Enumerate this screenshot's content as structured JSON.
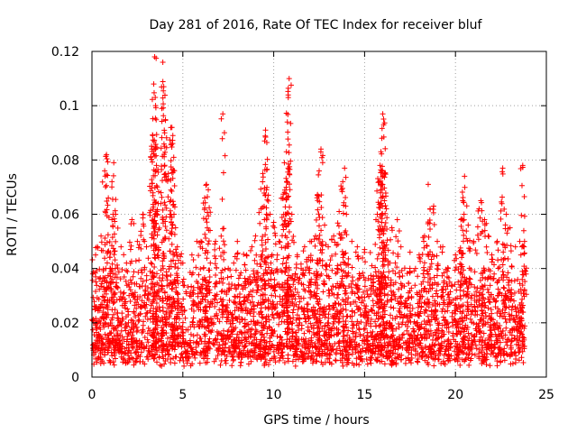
{
  "chart_data": {
    "type": "scatter",
    "title": "Day 281 of 2016, Rate Of TEC Index for receiver bluf",
    "xlabel": "GPS time / hours",
    "ylabel": "ROTI / TECUs",
    "xlim": [
      0,
      25
    ],
    "ylim": [
      0,
      0.12
    ],
    "xticks": [
      0,
      5,
      10,
      15,
      20,
      25
    ],
    "yticks": [
      0,
      0.02,
      0.04,
      0.06,
      0.08,
      0.1,
      0.12
    ],
    "xtick_labels": [
      "0",
      "5",
      "10",
      "15",
      "20",
      "25"
    ],
    "ytick_labels": [
      "0",
      "0.02",
      "0.04",
      "0.06",
      "0.08",
      "0.1",
      "0.12"
    ],
    "grid": true,
    "marker": "plus",
    "color": "#ff0000",
    "series": [
      {
        "name": "ROTI",
        "points": [
          [
            0.1,
            0.012
          ],
          [
            0.2,
            0.045
          ],
          [
            0.3,
            0.048
          ],
          [
            0.5,
            0.052
          ],
          [
            0.7,
            0.076
          ],
          [
            0.8,
            0.082
          ],
          [
            0.9,
            0.066
          ],
          [
            1.1,
            0.072
          ],
          [
            1.2,
            0.079
          ],
          [
            1.3,
            0.06
          ],
          [
            1.6,
            0.048
          ],
          [
            1.9,
            0.042
          ],
          [
            2.2,
            0.058
          ],
          [
            2.5,
            0.05
          ],
          [
            2.8,
            0.06
          ],
          [
            3.0,
            0.048
          ],
          [
            3.3,
            0.084
          ],
          [
            3.35,
            0.089
          ],
          [
            3.4,
            0.108
          ],
          [
            3.45,
            0.118
          ],
          [
            3.5,
            0.1
          ],
          [
            3.55,
            0.078
          ],
          [
            3.6,
            0.07
          ],
          [
            3.9,
            0.116
          ],
          [
            3.95,
            0.107
          ],
          [
            4.0,
            0.09
          ],
          [
            4.2,
            0.075
          ],
          [
            4.3,
            0.06
          ],
          [
            4.4,
            0.092
          ],
          [
            4.45,
            0.089
          ],
          [
            4.5,
            0.081
          ],
          [
            4.6,
            0.055
          ],
          [
            4.7,
            0.048
          ],
          [
            5.0,
            0.042
          ],
          [
            5.5,
            0.045
          ],
          [
            6.0,
            0.05
          ],
          [
            6.2,
            0.066
          ],
          [
            6.3,
            0.071
          ],
          [
            6.4,
            0.069
          ],
          [
            6.5,
            0.054
          ],
          [
            6.8,
            0.05
          ],
          [
            7.2,
            0.097
          ],
          [
            7.5,
            0.04
          ],
          [
            7.8,
            0.042
          ],
          [
            8.0,
            0.05
          ],
          [
            8.5,
            0.045
          ],
          [
            8.8,
            0.048
          ],
          [
            9.0,
            0.052
          ],
          [
            9.3,
            0.062
          ],
          [
            9.4,
            0.075
          ],
          [
            9.5,
            0.087
          ],
          [
            9.55,
            0.091
          ],
          [
            9.6,
            0.069
          ],
          [
            9.8,
            0.06
          ],
          [
            10.0,
            0.057
          ],
          [
            10.3,
            0.05
          ],
          [
            10.5,
            0.066
          ],
          [
            10.6,
            0.068
          ],
          [
            10.7,
            0.083
          ],
          [
            10.75,
            0.094
          ],
          [
            10.8,
            0.103
          ],
          [
            10.85,
            0.11
          ],
          [
            11.0,
            0.06
          ],
          [
            11.3,
            0.045
          ],
          [
            11.7,
            0.048
          ],
          [
            12.0,
            0.05
          ],
          [
            12.3,
            0.052
          ],
          [
            12.4,
            0.067
          ],
          [
            12.5,
            0.076
          ],
          [
            12.6,
            0.084
          ],
          [
            12.8,
            0.056
          ],
          [
            13.0,
            0.048
          ],
          [
            13.3,
            0.052
          ],
          [
            13.6,
            0.061
          ],
          [
            13.8,
            0.072
          ],
          [
            13.9,
            0.077
          ],
          [
            14.0,
            0.06
          ],
          [
            14.3,
            0.05
          ],
          [
            14.6,
            0.048
          ],
          [
            15.0,
            0.047
          ],
          [
            15.4,
            0.041
          ],
          [
            15.7,
            0.06
          ],
          [
            15.8,
            0.072
          ],
          [
            15.85,
            0.078
          ],
          [
            15.9,
            0.083
          ],
          [
            15.95,
            0.088
          ],
          [
            16.0,
            0.097
          ],
          [
            16.05,
            0.093
          ],
          [
            16.1,
            0.075
          ],
          [
            16.2,
            0.062
          ],
          [
            16.5,
            0.055
          ],
          [
            16.8,
            0.058
          ],
          [
            17.0,
            0.048
          ],
          [
            17.5,
            0.046
          ],
          [
            17.8,
            0.04
          ],
          [
            18.0,
            0.045
          ],
          [
            18.3,
            0.052
          ],
          [
            18.5,
            0.071
          ],
          [
            18.6,
            0.062
          ],
          [
            18.8,
            0.063
          ],
          [
            19.0,
            0.05
          ],
          [
            19.3,
            0.048
          ],
          [
            19.6,
            0.04
          ],
          [
            20.0,
            0.045
          ],
          [
            20.3,
            0.058
          ],
          [
            20.4,
            0.065
          ],
          [
            20.5,
            0.074
          ],
          [
            20.7,
            0.056
          ],
          [
            21.0,
            0.05
          ],
          [
            21.3,
            0.062
          ],
          [
            21.4,
            0.065
          ],
          [
            21.6,
            0.058
          ],
          [
            21.8,
            0.052
          ],
          [
            22.0,
            0.045
          ],
          [
            22.3,
            0.05
          ],
          [
            22.6,
            0.077
          ],
          [
            22.8,
            0.06
          ],
          [
            23.0,
            0.055
          ],
          [
            23.3,
            0.048
          ],
          [
            23.6,
            0.045
          ],
          [
            23.7,
            0.078
          ],
          [
            23.8,
            0.05
          ]
        ]
      }
    ]
  }
}
